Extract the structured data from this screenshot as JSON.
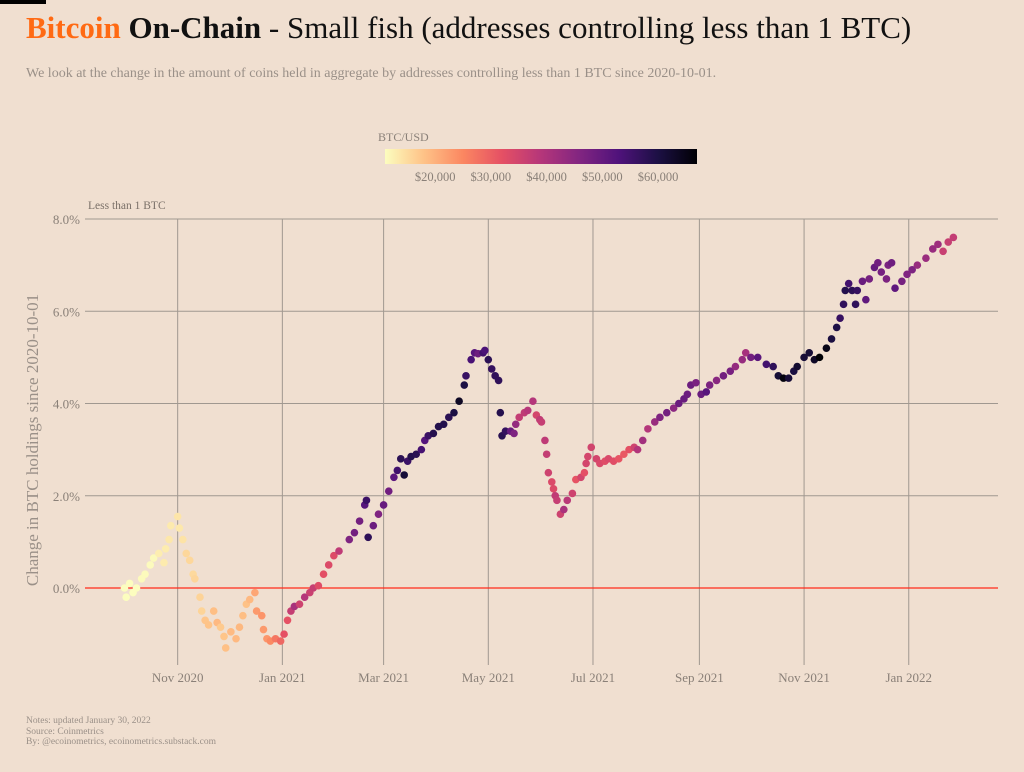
{
  "header": {
    "title_brand": "Bitcoin",
    "title_bold": "On-Chain",
    "title_rest": " - Small fish (addresses controlling less than 1 BTC)",
    "subtitle": "We look at the change in the amount of coins held in aggregate by addresses controlling less than 1 BTC since 2020-10-01."
  },
  "notes": [
    "Notes: updated January 30, 2022",
    "Source: Coinmetrics",
    "By: @ecoinometrics, ecoinometrics.substack.com"
  ],
  "colors": {
    "brand": "#ff6a13",
    "zero_line": "#ff2a1a",
    "grid": "#a09890",
    "background": "#f0dfd0"
  },
  "chart_data": {
    "type": "scatter",
    "facet_label": "Less than 1 BTC",
    "ylabel": "Change in BTC holdings since 2020-10-01",
    "xlabel": "",
    "xlim": [
      "2020-09-08",
      "2022-02-22"
    ],
    "ylim": [
      -1.65,
      8.0
    ],
    "x_ticks": [
      [
        "2020-11-01",
        "Nov 2020"
      ],
      [
        "2021-01-01",
        "Jan 2021"
      ],
      [
        "2021-03-01",
        "Mar 2021"
      ],
      [
        "2021-05-01",
        "May 2021"
      ],
      [
        "2021-07-01",
        "Jul 2021"
      ],
      [
        "2021-09-01",
        "Sep 2021"
      ],
      [
        "2021-11-01",
        "Nov 2021"
      ],
      [
        "2022-01-01",
        "Jan 2022"
      ]
    ],
    "y_ticks": [
      [
        0,
        "0.0%"
      ],
      [
        2,
        "2.0%"
      ],
      [
        4,
        "4.0%"
      ],
      [
        6,
        "6.0%"
      ],
      [
        8,
        "8.0%"
      ]
    ],
    "grid": true,
    "reference_line": 0,
    "color_scale": {
      "title": "BTC/USD",
      "palette": "magma (reversed)",
      "range": [
        11000,
        67000
      ],
      "ticks": [
        [
          20000,
          "$20,000"
        ],
        [
          30000,
          "$30,000"
        ],
        [
          40000,
          "$40,000"
        ],
        [
          50000,
          "$50,000"
        ],
        [
          60000,
          "$60,000"
        ]
      ]
    },
    "columns": [
      "date",
      "change_pct",
      "btc_usd"
    ],
    "points": [
      [
        "2020-10-01",
        0.0,
        10800
      ],
      [
        "2020-10-02",
        -0.2,
        10600
      ],
      [
        "2020-10-04",
        0.1,
        10700
      ],
      [
        "2020-10-06",
        -0.1,
        10600
      ],
      [
        "2020-10-08",
        0.0,
        10900
      ],
      [
        "2020-10-11",
        0.2,
        11400
      ],
      [
        "2020-10-13",
        0.3,
        11400
      ],
      [
        "2020-10-16",
        0.5,
        11300
      ],
      [
        "2020-10-18",
        0.65,
        11500
      ],
      [
        "2020-10-21",
        0.75,
        12900
      ],
      [
        "2020-10-24",
        0.55,
        13100
      ],
      [
        "2020-10-25",
        0.85,
        13000
      ],
      [
        "2020-10-27",
        1.05,
        13600
      ],
      [
        "2020-10-28",
        1.35,
        13300
      ],
      [
        "2020-11-01",
        1.55,
        13800
      ],
      [
        "2020-11-02",
        1.3,
        13500
      ],
      [
        "2020-11-04",
        1.05,
        14100
      ],
      [
        "2020-11-06",
        0.75,
        15500
      ],
      [
        "2020-11-08",
        0.6,
        15500
      ],
      [
        "2020-11-10",
        0.3,
        15300
      ],
      [
        "2020-11-11",
        0.2,
        15700
      ],
      [
        "2020-11-14",
        -0.2,
        16000
      ],
      [
        "2020-11-15",
        -0.5,
        15900
      ],
      [
        "2020-11-17",
        -0.7,
        17600
      ],
      [
        "2020-11-19",
        -0.8,
        17800
      ],
      [
        "2020-11-22",
        -0.5,
        18400
      ],
      [
        "2020-11-24",
        -0.75,
        19100
      ],
      [
        "2020-11-26",
        -0.85,
        17100
      ],
      [
        "2020-11-28",
        -1.05,
        17700
      ],
      [
        "2020-11-29",
        -1.3,
        18200
      ],
      [
        "2020-12-02",
        -0.95,
        19000
      ],
      [
        "2020-12-05",
        -1.1,
        19100
      ],
      [
        "2020-12-07",
        -0.85,
        19200
      ],
      [
        "2020-12-09",
        -0.6,
        18500
      ],
      [
        "2020-12-11",
        -0.35,
        18000
      ],
      [
        "2020-12-13",
        -0.25,
        19100
      ],
      [
        "2020-12-16",
        -0.1,
        21300
      ],
      [
        "2020-12-17",
        -0.5,
        22800
      ],
      [
        "2020-12-20",
        -0.6,
        23500
      ],
      [
        "2020-12-21",
        -0.9,
        22700
      ],
      [
        "2020-12-23",
        -1.1,
        23200
      ],
      [
        "2020-12-25",
        -1.15,
        24700
      ],
      [
        "2020-12-28",
        -1.1,
        27000
      ],
      [
        "2020-12-31",
        -1.15,
        29000
      ],
      [
        "2021-01-02",
        -1.0,
        32000
      ],
      [
        "2021-01-04",
        -0.7,
        31900
      ],
      [
        "2021-01-06",
        -0.5,
        36700
      ],
      [
        "2021-01-08",
        -0.4,
        40700
      ],
      [
        "2021-01-11",
        -0.35,
        35500
      ],
      [
        "2021-01-14",
        -0.2,
        39100
      ],
      [
        "2021-01-17",
        -0.1,
        36000
      ],
      [
        "2021-01-19",
        0.0,
        36600
      ],
      [
        "2021-01-22",
        0.05,
        33000
      ],
      [
        "2021-01-25",
        0.3,
        32300
      ],
      [
        "2021-01-28",
        0.5,
        33400
      ],
      [
        "2021-01-31",
        0.7,
        33100
      ],
      [
        "2021-02-03",
        0.8,
        37600
      ],
      [
        "2021-02-09",
        1.05,
        46400
      ],
      [
        "2021-02-12",
        1.2,
        47900
      ],
      [
        "2021-02-15",
        1.45,
        48000
      ],
      [
        "2021-02-18",
        1.8,
        52000
      ],
      [
        "2021-02-19",
        1.9,
        55800
      ],
      [
        "2021-02-20",
        1.1,
        57500
      ],
      [
        "2021-02-23",
        1.35,
        48900
      ],
      [
        "2021-02-26",
        1.6,
        46300
      ],
      [
        "2021-03-01",
        1.8,
        49600
      ],
      [
        "2021-03-04",
        2.1,
        48400
      ],
      [
        "2021-03-07",
        2.4,
        51200
      ],
      [
        "2021-03-09",
        2.55,
        54900
      ],
      [
        "2021-03-11",
        2.8,
        57800
      ],
      [
        "2021-03-13",
        2.45,
        61200
      ],
      [
        "2021-03-15",
        2.75,
        55700
      ],
      [
        "2021-03-17",
        2.85,
        58900
      ],
      [
        "2021-03-20",
        2.9,
        58100
      ],
      [
        "2021-03-23",
        3.0,
        54300
      ],
      [
        "2021-03-25",
        3.2,
        52300
      ],
      [
        "2021-03-27",
        3.3,
        55900
      ],
      [
        "2021-03-30",
        3.35,
        58800
      ],
      [
        "2021-04-02",
        3.5,
        59000
      ],
      [
        "2021-04-05",
        3.55,
        59000
      ],
      [
        "2021-04-08",
        3.7,
        58000
      ],
      [
        "2021-04-11",
        3.8,
        60000
      ],
      [
        "2021-04-14",
        4.05,
        63500
      ],
      [
        "2021-04-17",
        4.4,
        60000
      ],
      [
        "2021-04-18",
        4.6,
        56200
      ],
      [
        "2021-04-21",
        4.95,
        53800
      ],
      [
        "2021-04-23",
        5.1,
        51700
      ],
      [
        "2021-04-25",
        5.08,
        49000
      ],
      [
        "2021-04-28",
        5.1,
        54800
      ],
      [
        "2021-04-29",
        5.15,
        53500
      ],
      [
        "2021-05-01",
        4.95,
        57800
      ],
      [
        "2021-05-03",
        4.75,
        56600
      ],
      [
        "2021-05-05",
        4.6,
        57200
      ],
      [
        "2021-05-07",
        4.5,
        57300
      ],
      [
        "2021-05-08",
        3.8,
        58800
      ],
      [
        "2021-05-09",
        3.3,
        58200
      ],
      [
        "2021-05-11",
        3.4,
        56700
      ],
      [
        "2021-05-14",
        3.4,
        49700
      ],
      [
        "2021-05-16",
        3.35,
        46400
      ],
      [
        "2021-05-17",
        3.55,
        43500
      ],
      [
        "2021-05-19",
        3.7,
        37000
      ],
      [
        "2021-05-22",
        3.8,
        37500
      ],
      [
        "2021-05-24",
        3.85,
        38700
      ],
      [
        "2021-05-27",
        4.05,
        39200
      ],
      [
        "2021-05-29",
        3.75,
        34600
      ],
      [
        "2021-05-31",
        3.65,
        37300
      ],
      [
        "2021-06-01",
        3.6,
        36700
      ],
      [
        "2021-06-03",
        3.2,
        37600
      ],
      [
        "2021-06-04",
        2.9,
        36900
      ],
      [
        "2021-06-05",
        2.5,
        35500
      ],
      [
        "2021-06-07",
        2.3,
        33500
      ],
      [
        "2021-06-08",
        2.15,
        33400
      ],
      [
        "2021-06-09",
        2.0,
        37400
      ],
      [
        "2021-06-10",
        1.9,
        36700
      ],
      [
        "2021-06-12",
        1.6,
        35600
      ],
      [
        "2021-06-14",
        1.7,
        40500
      ],
      [
        "2021-06-16",
        1.9,
        38300
      ],
      [
        "2021-06-19",
        2.05,
        35500
      ],
      [
        "2021-06-21",
        2.35,
        31600
      ],
      [
        "2021-06-24",
        2.4,
        34700
      ],
      [
        "2021-06-26",
        2.5,
        32200
      ],
      [
        "2021-06-27",
        2.7,
        34600
      ],
      [
        "2021-06-28",
        2.85,
        34500
      ],
      [
        "2021-06-30",
        3.05,
        35000
      ],
      [
        "2021-07-03",
        2.8,
        34700
      ],
      [
        "2021-07-05",
        2.7,
        33800
      ],
      [
        "2021-07-08",
        2.75,
        32900
      ],
      [
        "2021-07-10",
        2.8,
        33800
      ],
      [
        "2021-07-13",
        2.75,
        32700
      ],
      [
        "2021-07-16",
        2.8,
        31500
      ],
      [
        "2021-07-19",
        2.9,
        30800
      ],
      [
        "2021-07-22",
        3.0,
        32100
      ],
      [
        "2021-07-25",
        3.05,
        35400
      ],
      [
        "2021-07-27",
        3.0,
        39400
      ],
      [
        "2021-07-30",
        3.2,
        41500
      ],
      [
        "2021-08-02",
        3.45,
        39200
      ],
      [
        "2021-08-06",
        3.6,
        42800
      ],
      [
        "2021-08-09",
        3.7,
        46300
      ],
      [
        "2021-08-13",
        3.8,
        47800
      ],
      [
        "2021-08-17",
        3.9,
        44700
      ],
      [
        "2021-08-20",
        4.0,
        49300
      ],
      [
        "2021-08-23",
        4.1,
        49500
      ],
      [
        "2021-08-25",
        4.2,
        48900
      ],
      [
        "2021-08-27",
        4.4,
        49000
      ],
      [
        "2021-08-30",
        4.45,
        47000
      ],
      [
        "2021-09-02",
        4.2,
        49300
      ],
      [
        "2021-09-05",
        4.25,
        51800
      ],
      [
        "2021-09-07",
        4.4,
        46800
      ],
      [
        "2021-09-11",
        4.5,
        45100
      ],
      [
        "2021-09-15",
        4.6,
        48100
      ],
      [
        "2021-09-19",
        4.7,
        47300
      ],
      [
        "2021-09-22",
        4.8,
        43500
      ],
      [
        "2021-09-26",
        4.95,
        43200
      ],
      [
        "2021-09-28",
        5.1,
        41000
      ],
      [
        "2021-10-01",
        5.0,
        48100
      ],
      [
        "2021-10-05",
        5.0,
        51500
      ],
      [
        "2021-10-10",
        4.85,
        54700
      ],
      [
        "2021-10-14",
        4.8,
        57300
      ],
      [
        "2021-10-17",
        4.6,
        61500
      ],
      [
        "2021-10-20",
        4.55,
        65900
      ],
      [
        "2021-10-23",
        4.55,
        61300
      ],
      [
        "2021-10-26",
        4.7,
        60300
      ],
      [
        "2021-10-28",
        4.8,
        62200
      ],
      [
        "2021-11-01",
        5.0,
        61300
      ],
      [
        "2021-11-04",
        5.1,
        61400
      ],
      [
        "2021-11-07",
        4.95,
        63300
      ],
      [
        "2021-11-10",
        5.0,
        66900
      ],
      [
        "2021-11-14",
        5.2,
        65000
      ],
      [
        "2021-11-17",
        5.4,
        60300
      ],
      [
        "2021-11-20",
        5.65,
        59700
      ],
      [
        "2021-11-22",
        5.85,
        56300
      ],
      [
        "2021-11-24",
        6.15,
        57100
      ],
      [
        "2021-11-25",
        6.45,
        58900
      ],
      [
        "2021-11-27",
        6.6,
        54700
      ],
      [
        "2021-11-29",
        6.45,
        57800
      ],
      [
        "2021-12-01",
        6.15,
        57200
      ],
      [
        "2021-12-02",
        6.45,
        56500
      ],
      [
        "2021-12-05",
        6.65,
        49400
      ],
      [
        "2021-12-07",
        6.25,
        50600
      ],
      [
        "2021-12-09",
        6.7,
        47600
      ],
      [
        "2021-12-12",
        6.95,
        50100
      ],
      [
        "2021-12-14",
        7.05,
        48400
      ],
      [
        "2021-12-16",
        6.85,
        47600
      ],
      [
        "2021-12-19",
        6.7,
        46700
      ],
      [
        "2021-12-20",
        7.0,
        46900
      ],
      [
        "2021-12-22",
        7.05,
        48600
      ],
      [
        "2021-12-24",
        6.5,
        50800
      ],
      [
        "2021-12-28",
        6.65,
        47500
      ],
      [
        "2021-12-31",
        6.8,
        46300
      ],
      [
        "2022-01-03",
        6.9,
        46500
      ],
      [
        "2022-01-06",
        7.0,
        43100
      ],
      [
        "2022-01-11",
        7.15,
        42700
      ],
      [
        "2022-01-15",
        7.35,
        43100
      ],
      [
        "2022-01-18",
        7.45,
        42200
      ],
      [
        "2022-01-21",
        7.3,
        36300
      ],
      [
        "2022-01-24",
        7.5,
        36600
      ],
      [
        "2022-01-27",
        7.6,
        37000
      ]
    ]
  }
}
